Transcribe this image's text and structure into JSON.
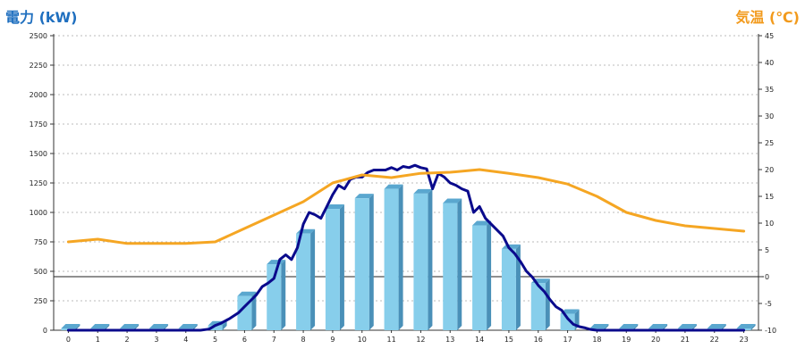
{
  "chart_data": {
    "type": "bar",
    "title_left": "電力 (kW)",
    "title_right": "気温 (℃)",
    "categories": [
      "0",
      "1",
      "2",
      "3",
      "4",
      "5",
      "6",
      "7",
      "8",
      "9",
      "10",
      "11",
      "12",
      "13",
      "14",
      "15",
      "16",
      "17",
      "18",
      "19",
      "20",
      "21",
      "22",
      "23"
    ],
    "y_left": {
      "min": 0,
      "max": 2500,
      "ticks": [
        "2500",
        "2250",
        "2000",
        "1750",
        "1500",
        "1250",
        "1000",
        "750",
        "500",
        "250",
        "0"
      ]
    },
    "y_right": {
      "min": -10,
      "max": 45,
      "ticks": [
        "45",
        "40",
        "35",
        "30",
        "25",
        "20",
        "15",
        "10",
        "5",
        "0",
        "-5",
        "-10"
      ]
    },
    "grid": true,
    "series": [
      {
        "axis": "left",
        "kind": "bar",
        "color": "#87ceeb",
        "values": [
          15,
          15,
          15,
          15,
          15,
          40,
          290,
          560,
          820,
          1030,
          1120,
          1200,
          1160,
          1080,
          890,
          690,
          400,
          140,
          15,
          15,
          15,
          15,
          15,
          15
        ]
      },
      {
        "axis": "left",
        "kind": "line",
        "color": "#0a0a8c",
        "x": [
          0,
          1,
          2,
          3,
          4,
          4.5,
          4.8,
          5,
          5.2,
          5.5,
          5.8,
          6,
          6.2,
          6.4,
          6.6,
          6.8,
          7,
          7.2,
          7.4,
          7.6,
          7.8,
          8,
          8.2,
          8.4,
          8.6,
          8.8,
          9,
          9.2,
          9.4,
          9.6,
          9.8,
          10,
          10.2,
          10.4,
          10.6,
          10.8,
          11,
          11.2,
          11.4,
          11.6,
          11.8,
          12,
          12.2,
          12.4,
          12.6,
          12.8,
          13,
          13.2,
          13.4,
          13.6,
          13.8,
          14,
          14.2,
          14.4,
          14.6,
          14.8,
          15,
          15.2,
          15.4,
          15.6,
          15.8,
          16,
          16.2,
          16.4,
          16.6,
          16.8,
          17,
          17.2,
          17.4,
          17.6,
          17.8,
          18,
          19,
          20,
          21,
          22,
          23
        ],
        "values": [
          0,
          0,
          0,
          0,
          0,
          0,
          10,
          40,
          60,
          100,
          150,
          200,
          250,
          300,
          370,
          400,
          440,
          600,
          640,
          600,
          700,
          900,
          1000,
          980,
          950,
          1050,
          1150,
          1230,
          1200,
          1280,
          1300,
          1300,
          1340,
          1360,
          1360,
          1360,
          1380,
          1360,
          1390,
          1380,
          1400,
          1380,
          1370,
          1200,
          1330,
          1300,
          1250,
          1230,
          1200,
          1180,
          1000,
          1050,
          950,
          900,
          850,
          800,
          700,
          650,
          580,
          500,
          450,
          380,
          330,
          260,
          200,
          170,
          100,
          50,
          30,
          20,
          5,
          0,
          0,
          0,
          0,
          0,
          0
        ]
      },
      {
        "axis": "right",
        "kind": "line",
        "color": "#f5a623",
        "x": [
          0,
          1,
          2,
          3,
          4,
          5,
          6,
          7,
          8,
          9,
          10,
          11,
          12,
          13,
          14,
          15,
          16,
          17,
          18,
          19,
          20,
          21,
          22,
          23
        ],
        "values": [
          6.5,
          7,
          6.2,
          6.2,
          6.2,
          6.5,
          9,
          11.5,
          14,
          17.5,
          19,
          18.5,
          19.3,
          19.5,
          20,
          19.3,
          18.5,
          17.3,
          15,
          12,
          10.5,
          9.5,
          9,
          8.5
        ]
      }
    ]
  }
}
